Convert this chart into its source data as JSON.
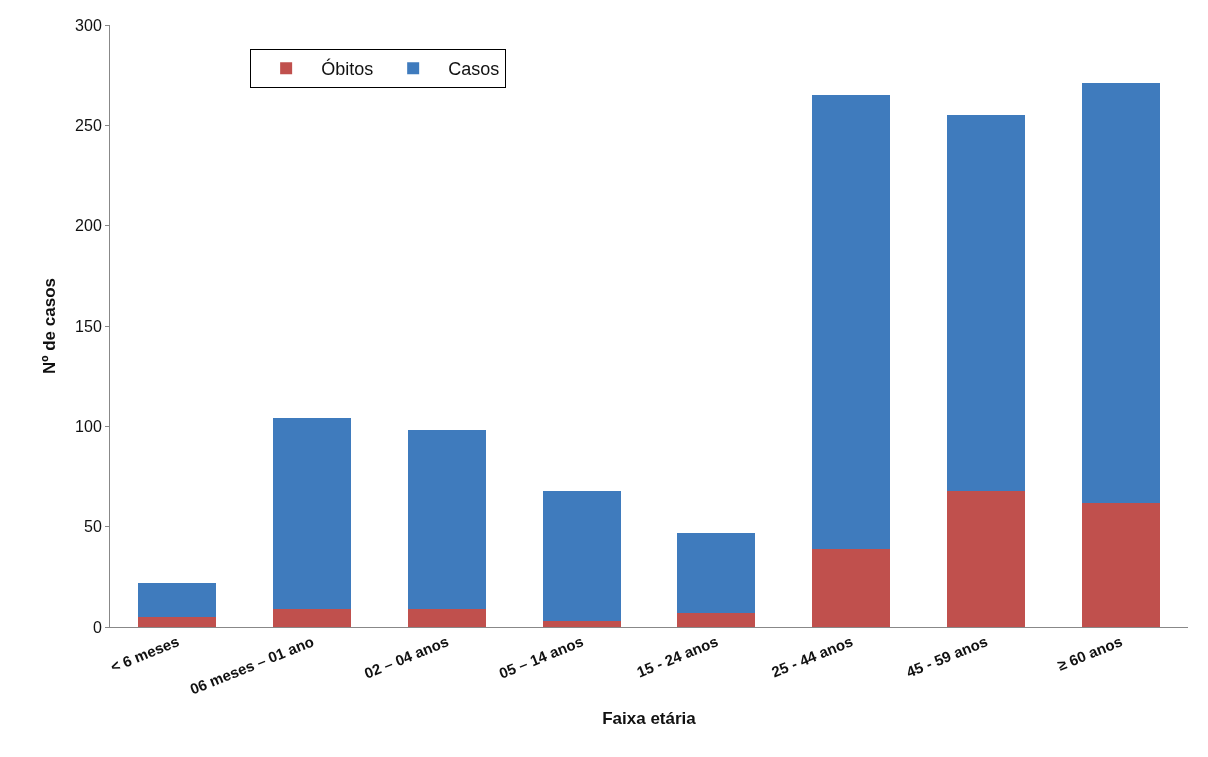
{
  "chart_data": {
    "type": "bar",
    "stacked": true,
    "xlabel": "Faixa etária",
    "ylabel": "Nº de casos",
    "categories": [
      "< 6 meses",
      "06 meses – 01 ano",
      "02 – 04 anos",
      "05 – 14 anos",
      "15 - 24 anos",
      "25 - 44 anos",
      "45 - 59 anos",
      "≥ 60 anos"
    ],
    "series": [
      {
        "name": "Óbitos",
        "color": "#c0504d",
        "values": [
          5,
          9,
          9,
          3,
          7,
          39,
          68,
          62
        ]
      },
      {
        "name": "Casos",
        "color": "#3f7bbd",
        "values": [
          17,
          95,
          89,
          65,
          40,
          226,
          187,
          209
        ]
      }
    ],
    "ylim": [
      0,
      300
    ],
    "yticks": [
      0,
      50,
      100,
      150,
      200,
      250,
      300
    ],
    "legend": "top left"
  }
}
